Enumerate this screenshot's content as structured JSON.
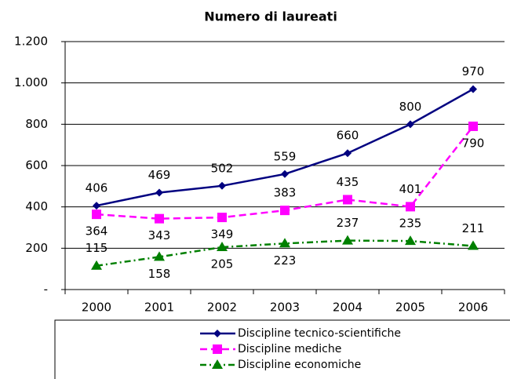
{
  "chart_data": {
    "type": "line",
    "title": "Numero di laureati",
    "categories": [
      "2000",
      "2001",
      "2002",
      "2003",
      "2004",
      "2005",
      "2006"
    ],
    "series": [
      {
        "name": "Discipline tecnico-scientifiche",
        "color": "#000080",
        "marker": "diamond",
        "dash": "solid",
        "values": [
          406,
          469,
          502,
          559,
          660,
          800,
          970
        ]
      },
      {
        "name": "Discipline mediche",
        "color": "#ff00ff",
        "marker": "square",
        "dash": "dashed",
        "values": [
          364,
          343,
          349,
          383,
          435,
          401,
          790
        ]
      },
      {
        "name": "Discipline economiche",
        "color": "#008000",
        "marker": "triangle",
        "dash": "dashdot",
        "values": [
          115,
          158,
          205,
          223,
          237,
          235,
          211
        ]
      }
    ],
    "ylim": [
      0,
      1200
    ],
    "yticks": [
      {
        "value": 0,
        "label": "-"
      },
      200,
      400,
      600,
      800,
      {
        "value": 1000,
        "label": "1.000"
      },
      {
        "value": 1200,
        "label": "1.200"
      }
    ],
    "grid": true,
    "legend": "bottom"
  }
}
